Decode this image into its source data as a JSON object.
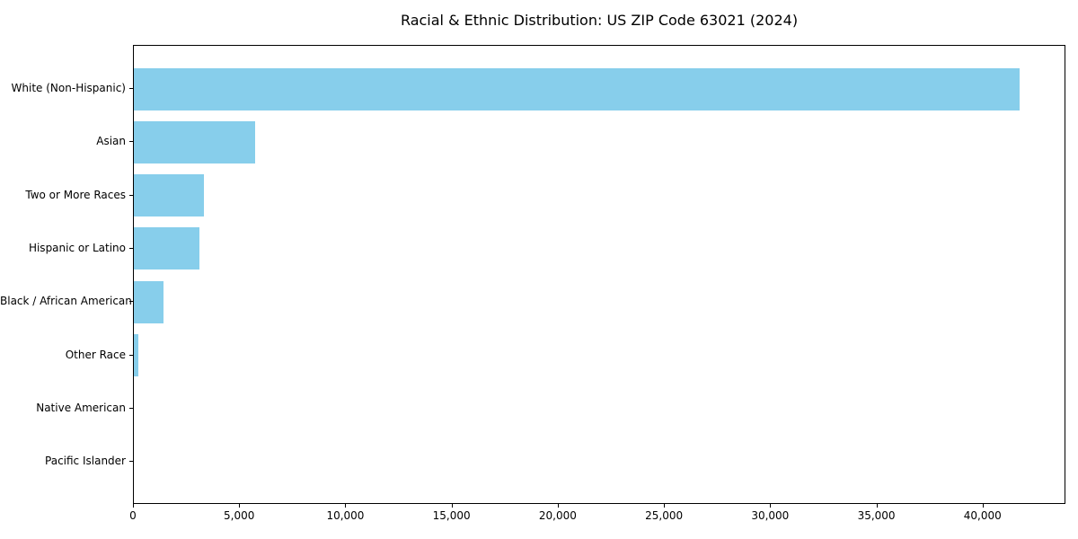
{
  "title": "Racial & Ethnic Distribution: US ZIP Code 63021 (2024)",
  "colors": {
    "bar": "#87CEEB",
    "axis": "#000000",
    "text": "#000000",
    "background": "#ffffff"
  },
  "chart_data": {
    "type": "bar",
    "orientation": "horizontal",
    "title": "Racial & Ethnic Distribution: US ZIP Code 63021 (2024)",
    "categories": [
      "White (Non-Hispanic)",
      "Asian",
      "Two or More Races",
      "Hispanic or Latino",
      "Black / African American",
      "Other Race",
      "Native American",
      "Pacific Islander"
    ],
    "values": [
      41800,
      5700,
      3300,
      3100,
      1400,
      200,
      0,
      0
    ],
    "xlabel": "",
    "ylabel": "",
    "xlim": [
      0,
      43900
    ],
    "x_ticks": [
      0,
      5000,
      10000,
      15000,
      20000,
      25000,
      30000,
      35000,
      40000
    ],
    "x_tick_labels": [
      "0",
      "5,000",
      "10,000",
      "15,000",
      "20,000",
      "25,000",
      "30,000",
      "35,000",
      "40,000"
    ],
    "grid": false,
    "legend": null,
    "bar_color": "#87CEEB"
  }
}
